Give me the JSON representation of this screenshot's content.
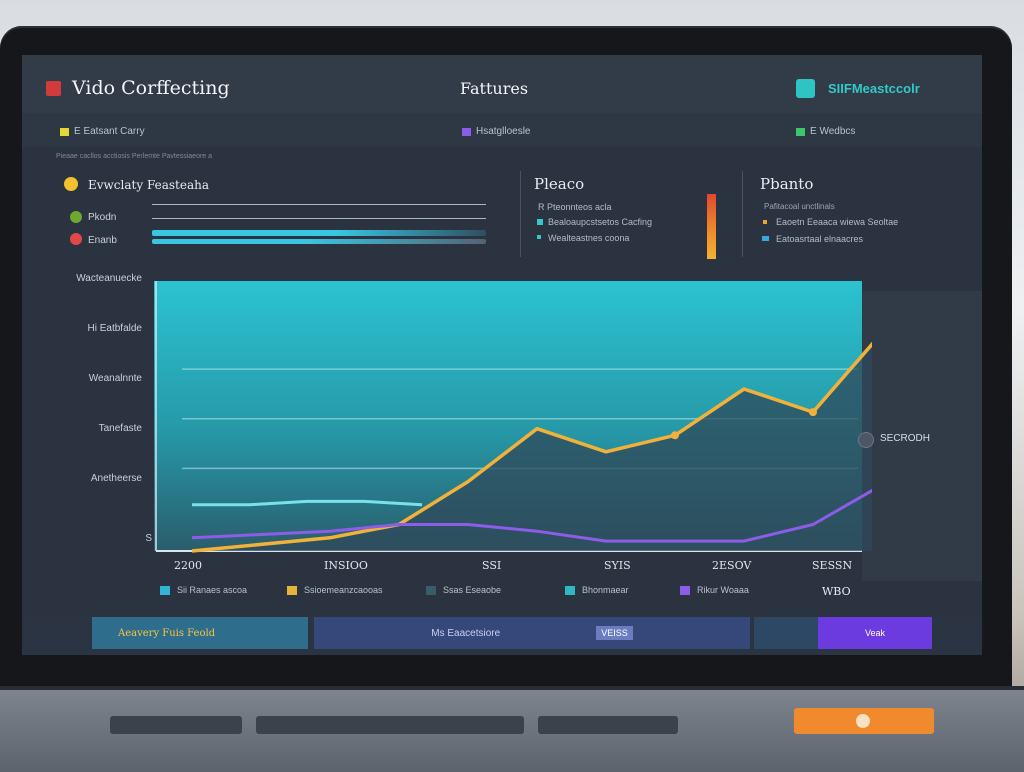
{
  "header": {
    "app_title": "Vido Corffecting",
    "nav_features": "Fattures",
    "brand_text": "SIIFMeastccolr",
    "brand_color": "#33c9c6"
  },
  "subbar": {
    "left": "E Eatsant Carry",
    "middle": "Hsatglloesle",
    "right": "E Wedbcs"
  },
  "breadcrumb": "Pieaae cacllos acctiosis Perlemte Pavtessiaeore a",
  "summary": {
    "title": "Evwclaty Feasteaha",
    "row1": "Pkodn",
    "row2": "Enanb"
  },
  "pleao": {
    "title": "Pleaco",
    "item1": "R Pteonnteos acla",
    "item2": "Bealoaupcstsetos Cacfing",
    "item3": "Wealteastnes coona"
  },
  "pbanto": {
    "title": "Pbanto",
    "item1": "Pafitacoal unctlinals",
    "item2": "Eaoetn Eeaaca wiewa Seoltae",
    "item3": "Eatoasrtaal elnaacres"
  },
  "chart_data": {
    "type": "line",
    "title": "",
    "y_tick_labels": [
      "Wacteanuecke",
      "Hi Eatbfalde",
      "Weanalnnte",
      "Tanefaste",
      "Anetheerse",
      "S"
    ],
    "x_tick_labels": [
      "2200",
      "INSIOO",
      "SSI",
      "SYIS",
      "2ESOV",
      "SESSN"
    ],
    "series": [
      {
        "color": "#f2b23a",
        "values": [
          0,
          2,
          4,
          8,
          21,
          37,
          30,
          35,
          49,
          42,
          66
        ]
      },
      {
        "color": "#8d5ce8",
        "values": [
          4,
          5,
          6,
          8,
          8,
          6,
          3,
          3,
          3,
          8,
          20
        ]
      },
      {
        "color": "#78e2ec",
        "values": [
          14,
          14,
          15,
          15,
          14
        ]
      }
    ],
    "annotation": "SECRODH",
    "grid": true
  },
  "legend": [
    {
      "label": "Sii Ranaes ascoa",
      "color": "#32b4d8"
    },
    {
      "label": "Ssioemeanzcaooas",
      "color": "#e5b53b"
    },
    {
      "label": "Ssas Eseaobe",
      "color": "#3a5c6a"
    },
    {
      "label": "Bhonmaear",
      "color": "#2eb8c4"
    },
    {
      "label": "Rikur Woaaa",
      "color": "#8d5ce8"
    },
    {
      "label": "WBO",
      "color": ""
    }
  ],
  "footer": {
    "left": "Aeavery Fuis Feold",
    "middle": "Ms Eaacetsiore",
    "badge": "VEISS",
    "right": "Veak"
  }
}
